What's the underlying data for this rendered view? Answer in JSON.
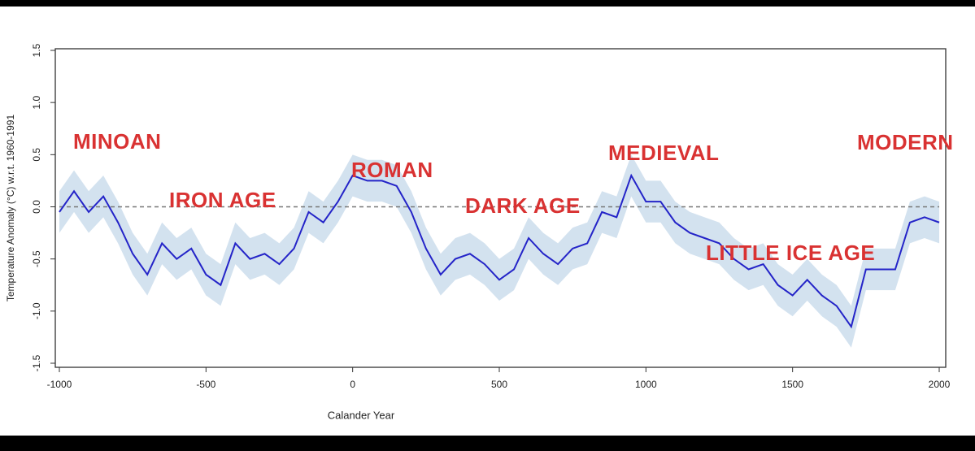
{
  "chart_data": {
    "type": "line",
    "x_label": "Calander Year",
    "y_label": "Temperature Anomaly (°C) w.r.t. 1960-1991",
    "x": [
      -1000,
      -950,
      -900,
      -850,
      -800,
      -750,
      -700,
      -650,
      -600,
      -550,
      -500,
      -450,
      -400,
      -350,
      -300,
      -250,
      -200,
      -150,
      -100,
      -50,
      0,
      50,
      100,
      150,
      200,
      250,
      300,
      350,
      400,
      450,
      500,
      550,
      600,
      650,
      700,
      750,
      800,
      850,
      900,
      950,
      1000,
      1050,
      1100,
      1150,
      1200,
      1250,
      1300,
      1350,
      1400,
      1450,
      1500,
      1550,
      1600,
      1650,
      1700,
      1750,
      1800,
      1850,
      1900,
      1950,
      2000
    ],
    "series": [
      {
        "color": "#2424c8",
        "band_color": "#d3e2ef",
        "error": 0.2,
        "values": [
          -0.05,
          0.15,
          -0.05,
          0.1,
          -0.15,
          -0.45,
          -0.65,
          -0.35,
          -0.5,
          -0.4,
          -0.65,
          -0.75,
          -0.35,
          -0.5,
          -0.45,
          -0.55,
          -0.4,
          -0.05,
          -0.15,
          0.05,
          0.3,
          0.25,
          0.25,
          0.2,
          -0.05,
          -0.4,
          -0.65,
          -0.5,
          -0.45,
          -0.55,
          -0.7,
          -0.6,
          -0.3,
          -0.45,
          -0.55,
          -0.4,
          -0.35,
          -0.05,
          -0.1,
          0.3,
          0.05,
          0.05,
          -0.15,
          -0.25,
          -0.3,
          -0.35,
          -0.5,
          -0.6,
          -0.55,
          -0.75,
          -0.85,
          -0.7,
          -0.85,
          -0.95,
          -1.15,
          -0.6,
          -0.6,
          -0.6,
          -0.15,
          -0.1,
          -0.15
        ]
      }
    ],
    "xlim": [
      -1000,
      2000
    ],
    "ylim": [
      -1.5,
      1.5
    ],
    "xticks": [
      -1000,
      -500,
      0,
      500,
      1000,
      1500,
      2000
    ],
    "yticks": [
      -1.5,
      {
        "value": -1,
        "label": "-1.0"
      },
      -0.5,
      {
        "value": 0,
        "label": "0.0"
      },
      0.5,
      {
        "value": 1,
        "label": "1.0"
      },
      1.5
    ],
    "reference_line": 0,
    "annotations": [
      "MINOAN",
      "IRON AGE",
      "ROMAN",
      "DARK AGE",
      "MEDIEVAL",
      "LITTLE ICE AGE",
      "MODERN"
    ]
  }
}
